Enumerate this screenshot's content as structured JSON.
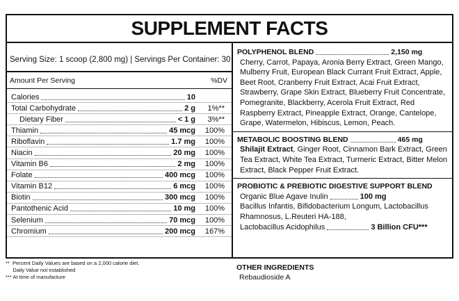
{
  "title": "SUPPLEMENT FACTS",
  "serving": "Serving Size: 1 scoop (2,800 mg) | Servings Per Container: 30",
  "amount_header": "Amount Per Serving",
  "dv_header": "%DV",
  "nutrients": [
    {
      "label": "Calories",
      "amount": "10",
      "dv": ""
    },
    {
      "label": "Total Carbohydrate",
      "amount": "2 g",
      "dv": "1%**"
    },
    {
      "label": "Dietary Fiber",
      "amount": "< 1 g",
      "dv": "3%**"
    },
    {
      "label": "Thiamin",
      "amount": "45 mcg",
      "dv": "100%"
    },
    {
      "label": "Riboflavin",
      "amount": "1.7 mg",
      "dv": "100%"
    },
    {
      "label": "Niacin",
      "amount": "20 mg",
      "dv": "100%"
    },
    {
      "label": "Vitamin B6",
      "amount": "2 mg",
      "dv": "100%"
    },
    {
      "label": "Folate",
      "amount": "400 mcg",
      "dv": "100%"
    },
    {
      "label": "Vitamin B12",
      "amount": "6 mcg",
      "dv": "100%"
    },
    {
      "label": "Biotin",
      "amount": "300 mcg",
      "dv": "100%"
    },
    {
      "label": "Pantothenic Acid",
      "amount": "10 mg",
      "dv": "100%"
    },
    {
      "label": "Selenium",
      "amount": "70 mcg",
      "dv": "100%"
    },
    {
      "label": "Chromium",
      "amount": "200 mcg",
      "dv": "167%"
    }
  ],
  "polyphenol": {
    "title": "POLYPHENOL BLEND",
    "amount": "2,150 mg",
    "body": "Cherry, Carrot, Papaya, Aronia Berry Extract, Green Mango, Mulberry Fruit, European Black Currant Fruit Extract, Apple, Beet Root, Cranberry Fruit Extract, Acai Fruit Extract, Strawberry, Grape Skin Extract, Blueberry Fruit Concentrate, Pomegranite, Blackberry, Acerola Fruit Extract, Red Raspberry Extract, Pineapple Extract, Orange, Cantelope,  Grape, Watermelon, Hibiscus, Lemon, Peach."
  },
  "metabolic": {
    "title": "METABOLIC BOOSTING BLEND",
    "amount": "465 mg",
    "lead": "Shilajit Extract",
    "body": ", Ginger Root, Cinnamon Bark Extract, Green Tea Extract, White Tea Extract, Turmeric Extract, Bitter Melon Extract, Black Pepper Fruit Extract."
  },
  "probiotic": {
    "title": "PROBIOTIC & PREBIOTIC DIGESTIVE SUPPORT BLEND",
    "inulin": "Organic Blue Agave Inulin",
    "inulin_amount": "100 mg",
    "line2": "Bacillus Infantis, Bifidobacterium Longum, Lactobacillus",
    "line3": "Rhamnosus, L.Reuteri HA-188,",
    "line4": "Lactobacillus Acidophilus",
    "cfu": "3 Billion CFU***"
  },
  "footnotes": [
    "**  Percent Daily Values are based on a 2,000 calorie diet.",
    "     Daily Value not established",
    "*** At time of manufacture"
  ],
  "other": {
    "heading": "OTHER INGREDIENTS",
    "value": "Rebaudioside A"
  }
}
